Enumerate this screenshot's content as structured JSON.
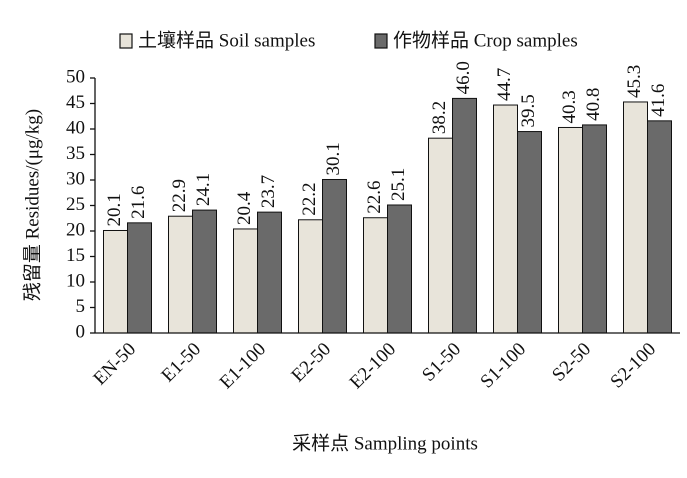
{
  "chart_data": {
    "type": "bar",
    "x_label": "采样点 Sampling points",
    "y_label": "残留量 Residues/(μg/kg)",
    "categories": [
      "EN-50",
      "E1-50",
      "E1-100",
      "E2-50",
      "E2-100",
      "S1-50",
      "S1-100",
      "S2-50",
      "S2-100"
    ],
    "series": [
      {
        "name": "土壤样品 Soil samples",
        "color": "#e8e4da",
        "values": [
          20.1,
          22.9,
          20.4,
          22.2,
          22.6,
          38.2,
          44.7,
          40.3,
          45.3
        ],
        "value_labels": [
          "20.1",
          "22.9",
          "20.4",
          "22.2",
          "22.6",
          "38.2",
          "44.7",
          "40.3",
          "45.3"
        ]
      },
      {
        "name": "作物样品 Crop samples",
        "color": "#6a6a6a",
        "values": [
          21.6,
          24.1,
          23.7,
          30.1,
          25.1,
          46.0,
          39.5,
          40.8,
          41.6
        ],
        "value_labels": [
          "21.6",
          "24.1",
          "23.7",
          "30.1",
          "25.1",
          "46.0",
          "39.5",
          "40.8",
          "41.6"
        ]
      }
    ],
    "ylim": [
      0,
      50
    ],
    "yticks": [
      0,
      5,
      10,
      15,
      20,
      25,
      30,
      35,
      40,
      45,
      50
    ],
    "legend": "top",
    "grid": false
  }
}
